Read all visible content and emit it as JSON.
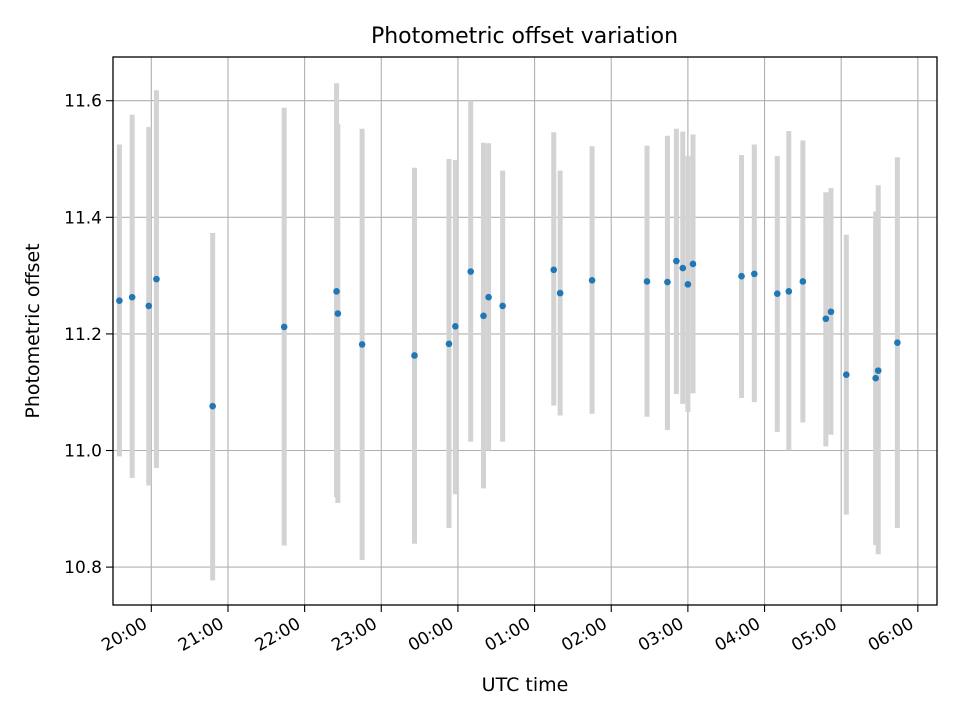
{
  "chart_data": {
    "type": "scatter",
    "title": "Photometric offset variation",
    "xlabel": "UTC time",
    "ylabel": "Photometric offset",
    "x_tick_labels": [
      "20:00",
      "21:00",
      "22:00",
      "23:00",
      "00:00",
      "01:00",
      "02:00",
      "03:00",
      "04:00",
      "05:00",
      "06:00"
    ],
    "x_tick_hours": [
      20,
      21,
      22,
      23,
      24,
      25,
      26,
      27,
      28,
      29,
      30
    ],
    "y_ticks": [
      10.8,
      11.0,
      11.2,
      11.4,
      11.6
    ],
    "xlim_hours": [
      19.5,
      30.25
    ],
    "ylim": [
      10.735,
      11.675
    ],
    "grid": true,
    "error_bar_color": "#d3d3d3",
    "marker_color": "#1f77b4",
    "points": [
      {
        "t": "19:35",
        "y": 11.257,
        "lo": 10.99,
        "hi": 11.525
      },
      {
        "t": "19:45",
        "y": 11.263,
        "lo": 10.953,
        "hi": 11.576
      },
      {
        "t": "19:58",
        "y": 11.248,
        "lo": 10.94,
        "hi": 11.555
      },
      {
        "t": "20:04",
        "y": 11.294,
        "lo": 10.97,
        "hi": 11.618
      },
      {
        "t": "20:48",
        "y": 11.076,
        "lo": 10.777,
        "hi": 11.373
      },
      {
        "t": "21:44",
        "y": 11.212,
        "lo": 10.837,
        "hi": 11.588
      },
      {
        "t": "22:25",
        "y": 11.273,
        "lo": 10.92,
        "hi": 11.63
      },
      {
        "t": "22:26",
        "y": 11.235,
        "lo": 10.91,
        "hi": 11.56
      },
      {
        "t": "22:45",
        "y": 11.182,
        "lo": 10.812,
        "hi": 11.552
      },
      {
        "t": "23:26",
        "y": 11.163,
        "lo": 10.84,
        "hi": 11.485
      },
      {
        "t": "23:53",
        "y": 11.183,
        "lo": 10.867,
        "hi": 11.5
      },
      {
        "t": "23:58",
        "y": 11.213,
        "lo": 10.925,
        "hi": 11.498
      },
      {
        "t": "00:10",
        "y": 11.307,
        "lo": 11.015,
        "hi": 11.6
      },
      {
        "t": "00:20",
        "y": 11.231,
        "lo": 10.935,
        "hi": 11.528
      },
      {
        "t": "00:24",
        "y": 11.263,
        "lo": 11.0,
        "hi": 11.527
      },
      {
        "t": "00:35",
        "y": 11.248,
        "lo": 11.015,
        "hi": 11.48
      },
      {
        "t": "01:15",
        "y": 11.31,
        "lo": 11.077,
        "hi": 11.546
      },
      {
        "t": "01:20",
        "y": 11.27,
        "lo": 11.06,
        "hi": 11.48
      },
      {
        "t": "01:45",
        "y": 11.292,
        "lo": 11.063,
        "hi": 11.522
      },
      {
        "t": "02:28",
        "y": 11.29,
        "lo": 11.058,
        "hi": 11.523
      },
      {
        "t": "02:44",
        "y": 11.289,
        "lo": 11.035,
        "hi": 11.54
      },
      {
        "t": "02:51",
        "y": 11.325,
        "lo": 11.097,
        "hi": 11.552
      },
      {
        "t": "02:56",
        "y": 11.313,
        "lo": 11.08,
        "hi": 11.547
      },
      {
        "t": "03:00",
        "y": 11.285,
        "lo": 11.066,
        "hi": 11.505
      },
      {
        "t": "03:04",
        "y": 11.32,
        "lo": 11.098,
        "hi": 11.542
      },
      {
        "t": "03:42",
        "y": 11.299,
        "lo": 11.09,
        "hi": 11.507
      },
      {
        "t": "03:52",
        "y": 11.303,
        "lo": 11.083,
        "hi": 11.525
      },
      {
        "t": "04:10",
        "y": 11.269,
        "lo": 11.032,
        "hi": 11.505
      },
      {
        "t": "04:19",
        "y": 11.273,
        "lo": 11.0,
        "hi": 11.548
      },
      {
        "t": "04:30",
        "y": 11.29,
        "lo": 11.048,
        "hi": 11.532
      },
      {
        "t": "04:48",
        "y": 11.226,
        "lo": 11.007,
        "hi": 11.443
      },
      {
        "t": "04:52",
        "y": 11.238,
        "lo": 11.027,
        "hi": 11.45
      },
      {
        "t": "05:04",
        "y": 11.13,
        "lo": 10.89,
        "hi": 11.37
      },
      {
        "t": "05:27",
        "y": 11.124,
        "lo": 10.838,
        "hi": 11.41
      },
      {
        "t": "05:29",
        "y": 11.137,
        "lo": 10.822,
        "hi": 11.455
      },
      {
        "t": "05:44",
        "y": 11.185,
        "lo": 10.867,
        "hi": 11.503
      }
    ]
  }
}
